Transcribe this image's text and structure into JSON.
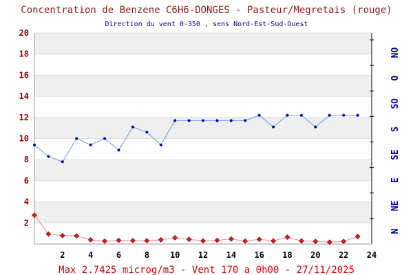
{
  "header": {
    "title": "Concentration de Benzene C6H6-DONGES - Pasteur/Megretais (rouge)",
    "subtitle": "Direction du vent 0-350 , sens Nord-Est-Sud-Ouest"
  },
  "footer": {
    "summary": "Max 2.7425 microg/m3 - Vent 170  a 0h00 - 27/11/2025"
  },
  "colors": {
    "concentration_line": "#e88aa0",
    "concentration_marker": "#cc2020",
    "wind_line": "#6699dd",
    "wind_marker": "#0000aa",
    "band": "#efefef"
  },
  "chart_data": {
    "type": "line",
    "xlim": [
      0,
      24
    ],
    "x_ticks": [
      "2",
      "4",
      "6",
      "8",
      "10",
      "12",
      "14",
      "16",
      "18",
      "20",
      "22",
      "24"
    ],
    "ylim": [
      0,
      20
    ],
    "y_ticks": [
      "2",
      "4",
      "6",
      "8",
      "10",
      "12",
      "14",
      "16",
      "18",
      "20"
    ],
    "y2_ticks": [
      "N",
      "NE",
      "E",
      "SE",
      "S",
      "SO",
      "O",
      "NO"
    ],
    "grid": true,
    "series": [
      {
        "role": "concentration",
        "axis": "left",
        "x": [
          0,
          1,
          2,
          3,
          4,
          5,
          6,
          7,
          8,
          9,
          10,
          11,
          12,
          13,
          14,
          15,
          16,
          17,
          18,
          19,
          20,
          21,
          22,
          23
        ],
        "values": [
          2.74,
          0.95,
          0.8,
          0.78,
          0.4,
          0.28,
          0.35,
          0.33,
          0.32,
          0.4,
          0.6,
          0.45,
          0.3,
          0.35,
          0.48,
          0.28,
          0.45,
          0.3,
          0.65,
          0.3,
          0.25,
          0.18,
          0.25,
          0.72
        ]
      },
      {
        "role": "wind_direction",
        "axis": "right",
        "x": [
          0,
          1,
          2,
          3,
          4,
          5,
          6,
          7,
          8,
          9,
          10,
          11,
          12,
          13,
          14,
          15,
          16,
          17,
          18,
          19,
          20,
          21,
          22,
          23
        ],
        "values": [
          9.4,
          8.3,
          7.8,
          10.0,
          9.4,
          10.0,
          8.9,
          11.1,
          10.6,
          9.4,
          11.7,
          11.7,
          11.7,
          11.7,
          11.7,
          11.7,
          12.2,
          11.1,
          12.2,
          12.2,
          11.1,
          12.2,
          12.2,
          12.2
        ]
      }
    ]
  }
}
